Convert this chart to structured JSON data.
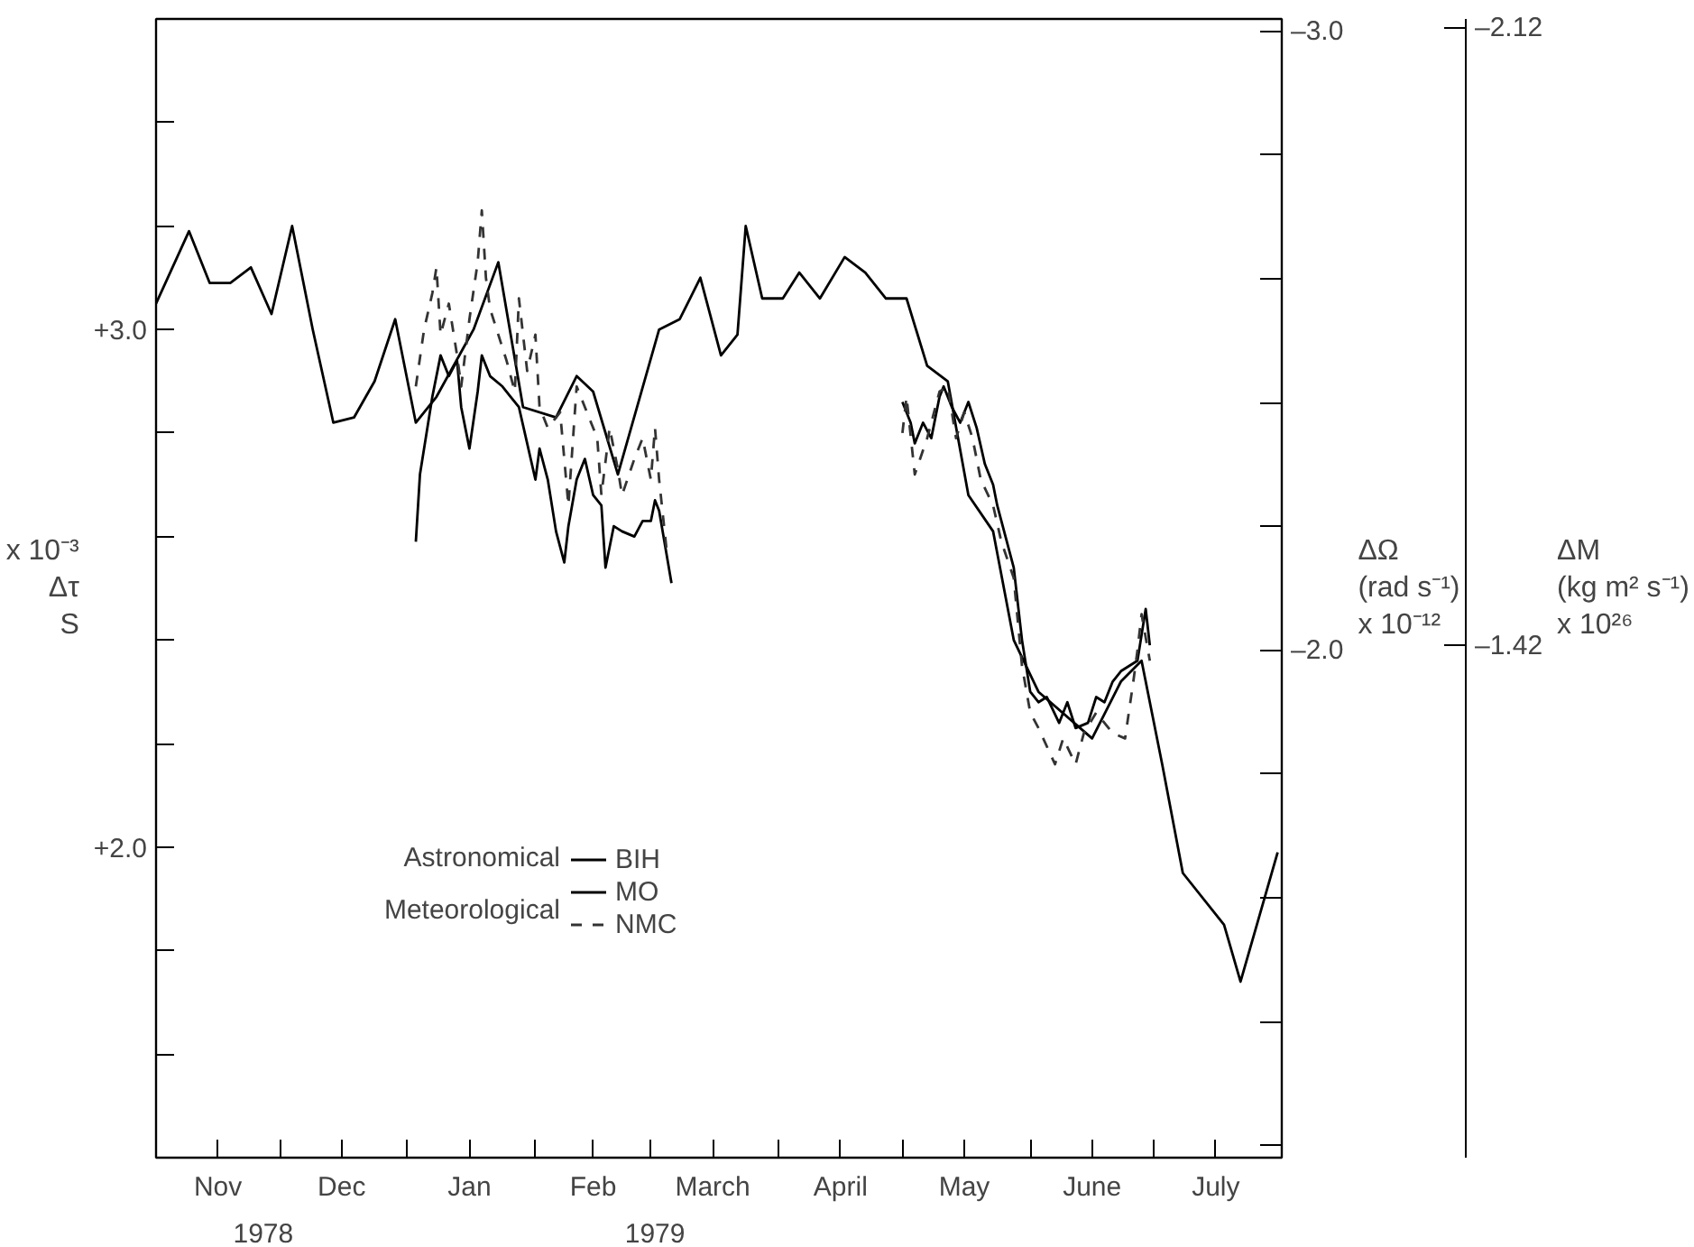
{
  "chart_data": {
    "type": "line",
    "ylabel": "x 10⁻³\nΔτ\nS",
    "y2label": "ΔΩ\n(rad s⁻¹)\nx 10⁻¹²",
    "y3label": "ΔM\n(kg m² s⁻¹)\nx 10²⁶",
    "annotations": [
      "Astronomical",
      "Meteorological"
    ],
    "xlim": [
      "1978-11-01",
      "1979-08-01"
    ],
    "xticks": [
      {
        "value": "1978-11-16",
        "label": "Nov"
      },
      {
        "value": "1978-12-01",
        "label": null
      },
      {
        "value": "1978-12-16",
        "label": "Dec"
      },
      {
        "value": "1979-01-01",
        "label": null
      },
      {
        "value": "1979-01-16",
        "label": "Jan"
      },
      {
        "value": "1979-02-01",
        "label": null
      },
      {
        "value": "1979-02-15",
        "label": "Feb"
      },
      {
        "value": "1979-03-01",
        "label": null
      },
      {
        "value": "1979-03-16",
        "label": "March"
      },
      {
        "value": "1979-04-01",
        "label": null
      },
      {
        "value": "1979-04-16",
        "label": "April"
      },
      {
        "value": "1979-05-01",
        "label": null
      },
      {
        "value": "1979-05-16",
        "label": "May"
      },
      {
        "value": "1979-06-01",
        "label": null
      },
      {
        "value": "1979-06-16",
        "label": "June"
      },
      {
        "value": "1979-07-01",
        "label": null
      },
      {
        "value": "1979-07-16",
        "label": "July"
      }
    ],
    "x2lim": [
      "1978-11-01",
      "1979-08-01"
    ],
    "x2ticks": [
      {
        "value": "1978-11-27",
        "label": "1978"
      },
      {
        "value": "1979-03-02",
        "label": "1979"
      }
    ],
    "ylim": [
      1.4,
      3.6
    ],
    "yticks": [
      {
        "value": 1.6,
        "label": null
      },
      {
        "value": 1.8,
        "label": null
      },
      {
        "value": 2.0,
        "label": "+2.0"
      },
      {
        "value": 2.2,
        "label": null
      },
      {
        "value": 2.4,
        "label": null
      },
      {
        "value": 2.6,
        "label": null
      },
      {
        "value": 2.8,
        "label": null
      },
      {
        "value": 3.0,
        "label": "+3.0"
      },
      {
        "value": 3.2,
        "label": null
      },
      {
        "value": 3.4,
        "label": null
      }
    ],
    "y2lim": [
      -1.18,
      -3.02
    ],
    "y2ticks": [
      {
        "value": -3.0,
        "label": "–3.0"
      },
      {
        "value": -2.8,
        "label": null
      },
      {
        "value": -2.6,
        "label": null
      },
      {
        "value": -2.4,
        "label": null
      },
      {
        "value": -2.2,
        "label": null
      },
      {
        "value": -2.0,
        "label": "–2.0"
      },
      {
        "value": -1.8,
        "label": null
      },
      {
        "value": -1.6,
        "label": null
      },
      {
        "value": -1.4,
        "label": null
      },
      {
        "value": -1.2,
        "label": null
      }
    ],
    "y3lim": [
      -0.84,
      -2.13
    ],
    "y3ticks": [
      {
        "value": -2.12,
        "label": "–2.12"
      },
      {
        "value": -1.42,
        "label": "–1.42"
      }
    ],
    "grid": false,
    "legend": "bottom left",
    "series": [
      {
        "name": "BIH",
        "color": "#000000",
        "line_style": "solid",
        "x": [
          "1978-11-01",
          "1978-11-09",
          "1978-11-14",
          "1978-11-19",
          "1978-11-24",
          "1978-11-29",
          "1978-12-04",
          "1978-12-09",
          "1978-12-14",
          "1978-12-19",
          "1978-12-24",
          "1978-12-29",
          "1979-01-03",
          "1979-01-08",
          "1979-01-17",
          "1979-01-23",
          "1979-01-29",
          "1979-02-06",
          "1979-02-11",
          "1979-02-15",
          "1979-02-21",
          "1979-03-03",
          "1979-03-08",
          "1979-03-13",
          "1979-03-18",
          "1979-03-22",
          "1979-03-24",
          "1979-03-28",
          "1979-04-02",
          "1979-04-06",
          "1979-04-11",
          "1979-04-17",
          "1979-04-22",
          "1979-04-27",
          "1979-05-02",
          "1979-05-07",
          "1979-05-12",
          "1979-05-17",
          "1979-05-23",
          "1979-05-28",
          "1979-06-03",
          "1979-06-16",
          "1979-06-23",
          "1979-06-28",
          "1979-07-03",
          "1979-07-08",
          "1979-07-18",
          "1979-07-22",
          "1979-07-31"
        ],
        "values": [
          3.05,
          3.19,
          3.09,
          3.09,
          3.12,
          3.03,
          3.2,
          3.0,
          2.82,
          2.83,
          2.9,
          3.02,
          2.82,
          2.87,
          3.0,
          3.13,
          2.85,
          2.83,
          2.91,
          2.88,
          2.72,
          3.0,
          3.02,
          3.1,
          2.95,
          2.99,
          3.2,
          3.06,
          3.06,
          3.11,
          3.06,
          3.14,
          3.11,
          3.06,
          3.06,
          2.93,
          2.9,
          2.68,
          2.61,
          2.4,
          2.3,
          2.21,
          2.32,
          2.36,
          2.16,
          1.95,
          1.85,
          1.74,
          1.99
        ]
      },
      {
        "name": "MO",
        "color": "#000000",
        "line_style": "solid",
        "x": [
          "1979-01-03",
          "1979-01-04",
          "1979-01-07",
          "1979-01-09",
          "1979-01-11",
          "1979-01-13",
          "1979-01-14",
          "1979-01-16",
          "1979-01-18",
          "1979-01-19",
          "1979-01-21",
          "1979-01-24",
          "1979-01-26",
          "1979-01-28",
          "1979-01-30",
          "1979-02-01",
          "1979-02-02",
          "1979-02-04",
          "1979-02-06",
          "1979-02-08",
          "1979-02-09",
          "1979-02-11",
          "1979-02-13",
          "1979-02-15",
          "1979-02-17",
          "1979-02-18",
          "1979-02-20",
          "1979-02-22",
          "1979-02-25",
          "1979-02-27",
          "1979-03-01",
          "1979-03-02",
          "1979-03-03",
          "1979-03-06",
          "1979-04-01",
          "1979-05-01",
          "1979-05-03",
          "1979-05-04",
          "1979-05-06",
          "1979-05-08",
          "1979-05-10",
          "1979-05-11",
          "1979-05-13",
          "1979-05-15",
          "1979-05-17",
          "1979-05-19",
          "1979-05-21",
          "1979-05-23",
          "1979-05-24",
          "1979-05-26",
          "1979-05-28",
          "1979-05-30",
          "1979-06-01",
          "1979-06-03",
          "1979-06-05",
          "1979-06-08",
          "1979-06-10",
          "1979-06-12",
          "1979-06-15",
          "1979-06-17",
          "1979-06-19",
          "1979-06-21",
          "1979-06-23",
          "1979-06-25",
          "1979-06-27",
          "1979-06-28",
          "1979-06-29",
          "1979-06-30"
        ],
        "values": [
          2.59,
          2.72,
          2.87,
          2.95,
          2.91,
          2.94,
          2.85,
          2.77,
          2.88,
          2.95,
          2.91,
          2.89,
          2.87,
          2.85,
          2.78,
          2.71,
          2.77,
          2.71,
          2.61,
          2.55,
          2.62,
          2.71,
          2.75,
          2.68,
          2.66,
          2.54,
          2.62,
          2.61,
          2.6,
          2.63,
          2.63,
          2.67,
          2.65,
          2.51,
          null,
          2.86,
          2.82,
          2.78,
          2.82,
          2.79,
          2.87,
          2.89,
          2.85,
          2.82,
          2.86,
          2.81,
          2.74,
          2.7,
          2.66,
          2.6,
          2.54,
          2.4,
          2.3,
          2.28,
          2.29,
          2.24,
          2.28,
          2.23,
          2.24,
          2.29,
          2.28,
          2.32,
          2.34,
          2.35,
          2.36,
          2.41,
          2.46,
          2.39
        ]
      },
      {
        "name": "NMC",
        "color": "#333333",
        "line_style": "dashed",
        "x": [
          "1979-01-03",
          "1979-01-05",
          "1979-01-07",
          "1979-01-08",
          "1979-01-09",
          "1979-01-11",
          "1979-01-13",
          "1979-01-14",
          "1979-01-16",
          "1979-01-18",
          "1979-01-19",
          "1979-01-20",
          "1979-01-21",
          "1979-01-23",
          "1979-01-25",
          "1979-01-27",
          "1979-01-28",
          "1979-01-30",
          "1979-02-01",
          "1979-02-02",
          "1979-02-04",
          "1979-02-07",
          "1979-02-09",
          "1979-02-11",
          "1979-02-13",
          "1979-02-16",
          "1979-02-17",
          "1979-02-19",
          "1979-02-21",
          "1979-02-22",
          "1979-02-25",
          "1979-02-27",
          "1979-03-01",
          "1979-03-02",
          "1979-03-03",
          "1979-03-05",
          "1979-04-01",
          "1979-05-01",
          "1979-05-02",
          "1979-05-04",
          "1979-05-07",
          "1979-05-10",
          "1979-05-12",
          "1979-05-14",
          "1979-05-16",
          "1979-05-18",
          "1979-05-20",
          "1979-05-23",
          "1979-05-25",
          "1979-05-28",
          "1979-05-30",
          "1979-06-01",
          "1979-06-03",
          "1979-06-07",
          "1979-06-09",
          "1979-06-12",
          "1979-06-14",
          "1979-06-17",
          "1979-06-21",
          "1979-06-24",
          "1979-06-26",
          "1979-06-27",
          "1979-06-28",
          "1979-06-30"
        ],
        "values": [
          2.89,
          3.0,
          3.07,
          3.12,
          2.99,
          3.05,
          2.95,
          2.89,
          3.02,
          3.13,
          3.23,
          3.1,
          3.04,
          2.99,
          2.94,
          2.88,
          3.06,
          2.92,
          2.99,
          2.85,
          2.81,
          2.84,
          2.66,
          2.89,
          2.85,
          2.79,
          2.68,
          2.81,
          2.73,
          2.68,
          2.75,
          2.79,
          2.71,
          2.81,
          2.71,
          2.56,
          null,
          2.8,
          2.87,
          2.72,
          2.79,
          2.88,
          2.89,
          2.79,
          2.84,
          2.79,
          2.71,
          2.66,
          2.59,
          2.52,
          2.35,
          2.26,
          2.23,
          2.16,
          2.21,
          2.16,
          2.22,
          2.26,
          2.22,
          2.21,
          2.32,
          2.38,
          2.45,
          2.36
        ]
      }
    ]
  }
}
